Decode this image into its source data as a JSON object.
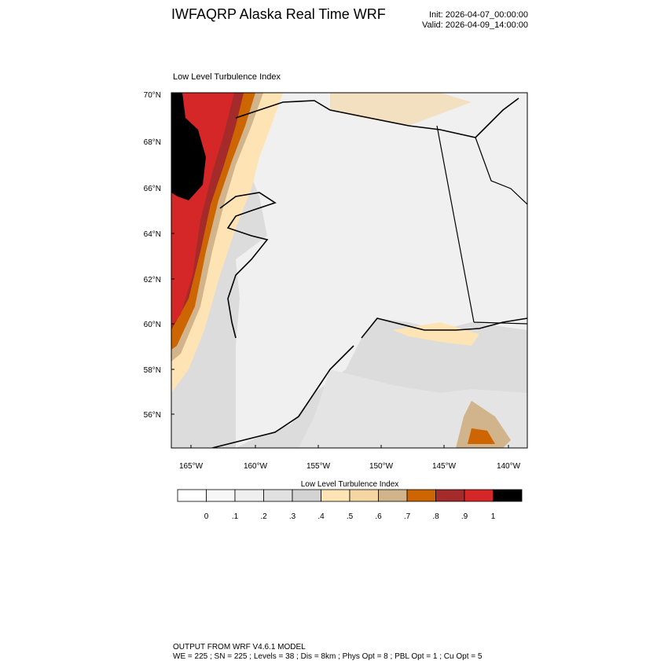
{
  "header": {
    "title": "IWFAQRP Alaska Real Time WRF",
    "init": "Init: 2026-04-07_00:00:00",
    "valid": "Valid: 2026-04-09_14:00:00"
  },
  "map": {
    "title": "Low Level Turbulence Index",
    "lat_labels": [
      "70°N",
      "68°N",
      "66°N",
      "64°N",
      "62°N",
      "60°N",
      "58°N",
      "56°N"
    ],
    "lon_labels": [
      "165°W",
      "160°W",
      "155°W",
      "150°W",
      "145°W",
      "140°W"
    ]
  },
  "colorbar": {
    "title": "Low Level Turbulence Index",
    "colors": [
      "#ffffff",
      "#f7f7f7",
      "#efefef",
      "#e1e1e1",
      "#d3d3d3",
      "#fee3b4",
      "#f5d5a2",
      "#d2b48c",
      "#cd6600",
      "#a52a2a",
      "#d62728",
      "#000000"
    ],
    "labels": [
      "0",
      ".1",
      ".2",
      ".3",
      ".4",
      ".5",
      ".6",
      ".7",
      ".8",
      ".9",
      "1"
    ]
  },
  "footer": {
    "line1": "OUTPUT FROM WRF V4.6.1 MODEL",
    "line2": "WE = 225 ; SN = 225 ; Levels = 38 ; Dis = 8km ; Phys Opt = 8 ; PBL Opt = 1 ; Cu Opt = 5"
  }
}
